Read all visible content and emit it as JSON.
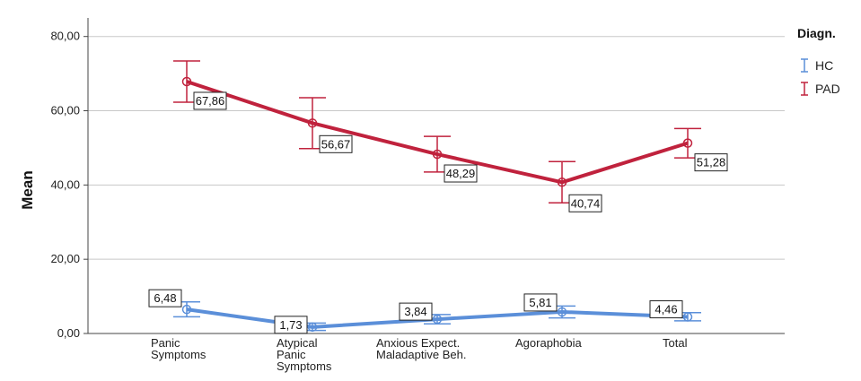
{
  "chart_data": {
    "type": "line",
    "ylabel": "Mean",
    "ylim": [
      0,
      85
    ],
    "y_ticks": [
      "0,00",
      "20,00",
      "40,00",
      "60,00",
      "80,00"
    ],
    "y_tick_values": [
      0,
      20,
      40,
      60,
      80
    ],
    "grid": true,
    "categories": [
      "Panic\nSymptoms",
      "Atypical\nPanic\nSymptoms",
      "Anxious Expect.\nMaladaptive Beh.",
      "Agoraphobia",
      "Total"
    ],
    "legend": {
      "title": "Diagn.",
      "placement": "right"
    },
    "series": [
      {
        "name": "HC",
        "color": "#5b8fd9",
        "values": [
          6.48,
          1.73,
          3.84,
          5.81,
          4.46
        ],
        "labels": [
          "6,48",
          "1,73",
          "3,84",
          "5,81",
          "4,46"
        ],
        "error_low": [
          4.5,
          0.8,
          2.6,
          4.2,
          3.4
        ],
        "error_high": [
          8.5,
          2.8,
          5.1,
          7.4,
          5.6
        ]
      },
      {
        "name": "PAD",
        "color": "#c0223d",
        "values": [
          67.86,
          56.67,
          48.29,
          40.74,
          51.28
        ],
        "labels": [
          "67,86",
          "56,67",
          "48,29",
          "40,74",
          "51,28"
        ],
        "error_low": [
          62.3,
          49.8,
          43.5,
          35.2,
          47.3
        ],
        "error_high": [
          73.4,
          63.5,
          53.1,
          46.3,
          55.2
        ]
      }
    ]
  }
}
